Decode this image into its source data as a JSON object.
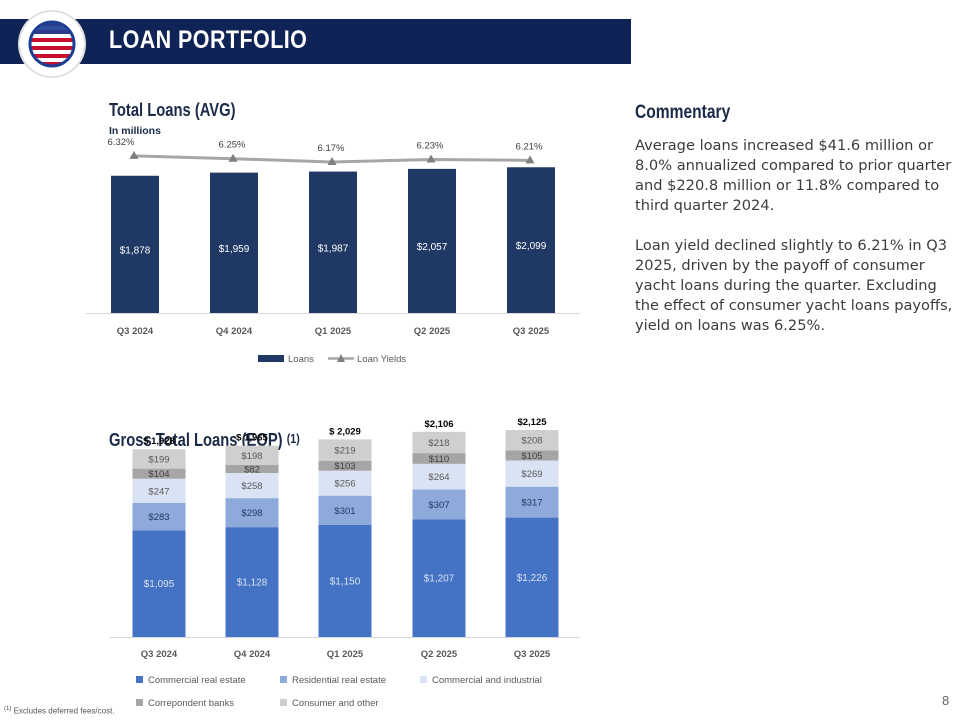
{
  "header": {
    "title": "LOAN PORTFOLIO"
  },
  "commentary": {
    "title": "Commentary",
    "paragraphs": [
      "Average loans increased $41.6 million or 8.0% annualized compared to prior quarter and $220.8 million or 11.8% compared to third quarter 2024.",
      "Loan yield declined slightly to 6.21% in Q3 2025, driven by the payoff of consumer yacht loans during the quarter. Excluding the effect of consumer yacht loans payoffs, yield on loans was 6.25%."
    ]
  },
  "footnote": {
    "marker": "(1)",
    "text": " Excludes deferred fees/cost."
  },
  "page_number": "8",
  "colors": {
    "header_bg": "#0f2356",
    "loans_bar": "#1f3864",
    "yield_line": "#a6a6a6",
    "commercial_re": "#4472c4",
    "residential_re": "#8eaadb",
    "commercial_ind": "#dae3f3",
    "correspondent": "#a5a5a5",
    "consumer": "#d0cece"
  },
  "chart_data": [
    {
      "type": "bar",
      "title": "Total Loans (AVG)",
      "subtitle": "In millions",
      "categories": [
        "Q3 2024",
        "Q4 2024",
        "Q1 2025",
        "Q2 2025",
        "Q3 2025"
      ],
      "series": [
        {
          "name": "Loans",
          "type": "bar",
          "values": [
            1878,
            1959,
            1987,
            2057,
            2099
          ],
          "labels": [
            "$1,878",
            "$1,959",
            "$1,987",
            "$2,057",
            "$2,099"
          ]
        },
        {
          "name": "Loan Yields",
          "type": "line",
          "values": [
            6.32,
            6.25,
            6.17,
            6.23,
            6.21
          ],
          "labels": [
            "6.32%",
            "6.25%",
            "6.17%",
            "6.23%",
            "6.21%"
          ]
        }
      ],
      "legend": "bottom"
    },
    {
      "type": "bar",
      "stacked": true,
      "title": "Gross Total Loans (EOP)",
      "title_note": "(1)",
      "categories": [
        "Q3 2024",
        "Q4 2024",
        "Q1 2025",
        "Q2 2025",
        "Q3 2025"
      ],
      "series": [
        {
          "name": "Commercial real estate",
          "values": [
            1095,
            1128,
            1150,
            1207,
            1226
          ],
          "labels": [
            "$1,095",
            "$1,128",
            "$1,150",
            "$1,207",
            "$1,226"
          ]
        },
        {
          "name": "Residential real estate",
          "values": [
            283,
            298,
            301,
            307,
            317
          ],
          "labels": [
            "$283",
            "$298",
            "$301",
            "$307",
            "$317"
          ]
        },
        {
          "name": "Commercial and industrial",
          "values": [
            247,
            258,
            256,
            264,
            269
          ],
          "labels": [
            "$247",
            "$258",
            "$256",
            "$264",
            "$269"
          ]
        },
        {
          "name": "Correpondent banks",
          "values": [
            104,
            82,
            103,
            110,
            105
          ],
          "labels": [
            "$104",
            "$82",
            "$103",
            "$110",
            "$105"
          ]
        },
        {
          "name": "Consumer and other",
          "values": [
            199,
            198,
            219,
            218,
            208
          ],
          "labels": [
            "$199",
            "$198",
            "$219",
            "$218",
            "$208"
          ]
        }
      ],
      "totals": [
        1928,
        1965,
        2029,
        2106,
        2125
      ],
      "total_labels": [
        "$ 1,928",
        "$ 1,965",
        "$ 2,029",
        "$2,106",
        "$2,125"
      ],
      "legend": "bottom"
    }
  ]
}
